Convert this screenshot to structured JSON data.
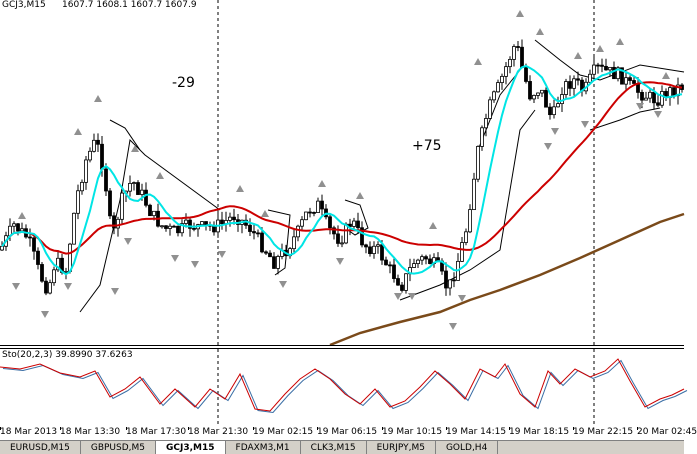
{
  "chart_header": {
    "symbol_timeframe": "GCJ3,M15",
    "ohlc": "1607.7 1608.1 1607.7 1607.9"
  },
  "annotations": {
    "left": "-29",
    "right": "+75"
  },
  "indicator": {
    "label": "Sto(20,2,3) 39.8990 37.6263"
  },
  "time_labels": [
    "18 Mar 2013",
    "18 Mar 13:30",
    "18 Mar 17:30",
    "18 Mar 21:30",
    "19 Mar 02:15",
    "19 Mar 06:15",
    "19 Mar 10:15",
    "19 Mar 14:15",
    "19 Mar 18:15",
    "19 Mar 22:15",
    "20 Mar 02:45"
  ],
  "tabs": [
    {
      "label": "EURUSD,M15",
      "active": false
    },
    {
      "label": "GBPUSD,M5",
      "active": false
    },
    {
      "label": "GCJ3,M15",
      "active": true
    },
    {
      "label": "FDAXM3,M1",
      "active": false
    },
    {
      "label": "CLK3,M15",
      "active": false
    },
    {
      "label": "EURJPY,M5",
      "active": false
    },
    {
      "label": "GOLD,H4",
      "active": false
    }
  ],
  "colors": {
    "candle": "#000000",
    "ma_fast": "#00e5e5",
    "ma_mid": "#cc0000",
    "ma_slow": "#7a4a1a",
    "stoch_main": "#cc0000",
    "stoch_signal": "#3a6ea5",
    "fractal": "#909090"
  }
}
